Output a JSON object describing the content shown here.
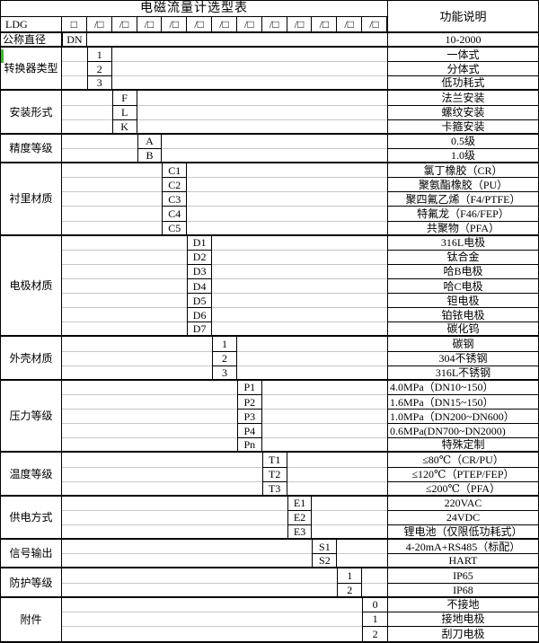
{
  "table": {
    "title": "电磁流量计选型表",
    "function_column_header": "功能说明",
    "model_row": {
      "prefix": "LDG",
      "first_box": "□",
      "slots": [
        "/□",
        "/□",
        "/□",
        "/□",
        "/□",
        "/□",
        "/□",
        "/□",
        "/□",
        "/□",
        "/□",
        "/□"
      ]
    },
    "groups": [
      {
        "label": "公称直径",
        "label_align": "left",
        "options": [
          {
            "code": "DN",
            "desc": "10-2000"
          }
        ]
      },
      {
        "label": "转换器类型",
        "options": [
          {
            "code": "1",
            "desc": "一体式"
          },
          {
            "code": "2",
            "desc": "分体式"
          },
          {
            "code": "3",
            "desc": "低功耗式"
          }
        ]
      },
      {
        "label": "安装形式",
        "options": [
          {
            "code": "F",
            "desc": "法兰安装"
          },
          {
            "code": "L",
            "desc": "螺纹安装"
          },
          {
            "code": "K",
            "desc": "卡箍安装"
          }
        ]
      },
      {
        "label": "精度等级",
        "options": [
          {
            "code": "A",
            "desc": "0.5级"
          },
          {
            "code": "B",
            "desc": "1.0级"
          }
        ]
      },
      {
        "label": "衬里材质",
        "options": [
          {
            "code": "C1",
            "desc": "氯丁橡胶（CR）"
          },
          {
            "code": "C2",
            "desc": "聚氨酯橡胶（PU）"
          },
          {
            "code": "C3",
            "desc": "聚四氟乙烯（F4/PTFE）"
          },
          {
            "code": "C4",
            "desc": "特氟龙（F46/FEP）"
          },
          {
            "code": "C5",
            "desc": "共聚物（PFA）"
          }
        ]
      },
      {
        "label": "电极材质",
        "options": [
          {
            "code": "D1",
            "desc": "316L电极"
          },
          {
            "code": "D2",
            "desc": "钛合金"
          },
          {
            "code": "D3",
            "desc": "哈B电极"
          },
          {
            "code": "D4",
            "desc": "哈C电极"
          },
          {
            "code": "D5",
            "desc": "钽电极"
          },
          {
            "code": "D6",
            "desc": "铂铱电极"
          },
          {
            "code": "D7",
            "desc": "碳化钨"
          }
        ]
      },
      {
        "label": "外壳材质",
        "options": [
          {
            "code": "1",
            "desc": "碳钢"
          },
          {
            "code": "2",
            "desc": "304不锈钢"
          },
          {
            "code": "3",
            "desc": "316L不锈钢"
          }
        ]
      },
      {
        "label": "压力等级",
        "options": [
          {
            "code": "P1",
            "desc": "4.0MPa（DN10~150）",
            "align": "left"
          },
          {
            "code": "P2",
            "desc": "1.6MPa（DN15~150）",
            "align": "left"
          },
          {
            "code": "P3",
            "desc": "1.0MPa（DN200~DN600）",
            "align": "left"
          },
          {
            "code": "P4",
            "desc": "0.6MPa(DN700~DN2000)",
            "align": "left"
          },
          {
            "code": "Pn",
            "desc": "特殊定制"
          }
        ]
      },
      {
        "label": "温度等级",
        "options": [
          {
            "code": "T1",
            "desc": "≤80℃（CR/PU）"
          },
          {
            "code": "T2",
            "desc": "≤120℃（PTEP/FEP）"
          },
          {
            "code": "T3",
            "desc": "≤200℃（PFA）"
          }
        ]
      },
      {
        "label": "供电方式",
        "options": [
          {
            "code": "E1",
            "desc": "220VAC"
          },
          {
            "code": "E2",
            "desc": "24VDC"
          },
          {
            "code": "E3",
            "desc": "锂电池（仅限低功耗式）"
          }
        ]
      },
      {
        "label": "信号输出",
        "options": [
          {
            "code": "S1",
            "desc": "4-20mA+RS485（标配）"
          },
          {
            "code": "S2",
            "desc": "HART"
          }
        ]
      },
      {
        "label": "防护等级",
        "options": [
          {
            "code": "1",
            "desc": "IP65"
          },
          {
            "code": "2",
            "desc": "IP68"
          }
        ]
      },
      {
        "label": "附件",
        "options": [
          {
            "code": "0",
            "desc": "不接地"
          },
          {
            "code": "1",
            "desc": "接地电极"
          },
          {
            "code": "2",
            "desc": "刮刀电极"
          }
        ]
      }
    ]
  },
  "colors": {
    "border": "#000000",
    "gridline": "#c8c8c8",
    "artifact_green": "#46b13c",
    "background": "#ffffff",
    "text": "#000000"
  }
}
